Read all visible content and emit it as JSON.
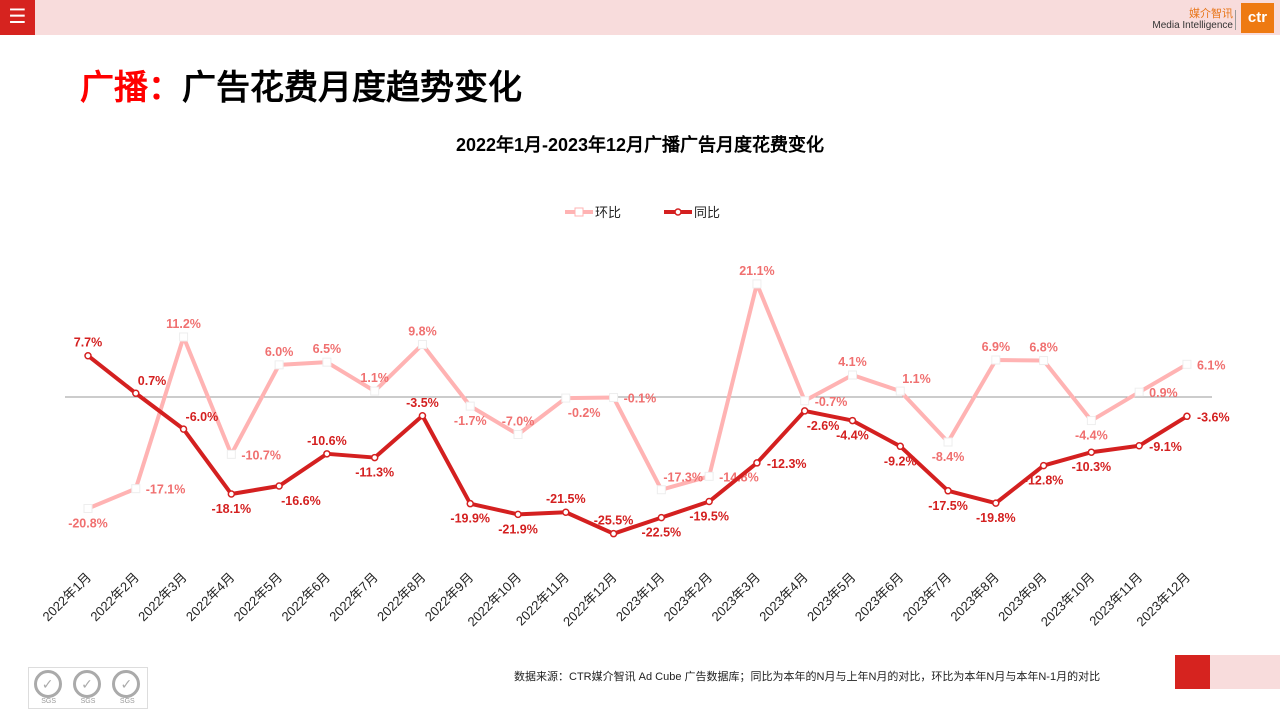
{
  "header": {
    "menu_icon": "hamburger-icon",
    "brand_cn": "媒介智讯",
    "brand_en": "Media Intelligence",
    "logo": "ctr"
  },
  "page_title": {
    "prefix": "广播：",
    "main": "广告花费月度趋势变化"
  },
  "colors": {
    "huanbi": "#ffb3b3",
    "huanbi_label": "#f07070",
    "tongbi": "#d42020",
    "accent": "#d6231f"
  },
  "chart_data": {
    "type": "line",
    "title": "2022年1月-2023年12月广播广告月度花费变化",
    "legend_position": "top",
    "grid": false,
    "categories": [
      "2022年1月",
      "2022年2月",
      "2022年3月",
      "2022年4月",
      "2022年5月",
      "2022年6月",
      "2022年7月",
      "2022年8月",
      "2022年9月",
      "2022年10月",
      "2022年11月",
      "2022年12月",
      "2023年1月",
      "2023年2月",
      "2023年3月",
      "2023年4月",
      "2023年5月",
      "2023年6月",
      "2023年7月",
      "2023年8月",
      "2023年9月",
      "2023年10月",
      "2023年11月",
      "2023年12月"
    ],
    "ylim": [
      -27,
      23
    ],
    "series": [
      {
        "name": "环比",
        "values": [
          -20.8,
          -17.1,
          11.2,
          -10.7,
          6.0,
          6.5,
          1.1,
          9.8,
          -1.7,
          -7.0,
          -0.2,
          -0.1,
          -17.3,
          -14.8,
          21.1,
          -0.7,
          4.1,
          1.1,
          -8.4,
          6.9,
          6.8,
          -4.4,
          0.9,
          6.1
        ]
      },
      {
        "name": "同比",
        "values": [
          7.7,
          0.7,
          -6.0,
          -18.1,
          -16.6,
          -10.6,
          -11.3,
          -3.5,
          -19.9,
          -21.9,
          -21.5,
          -25.5,
          -22.5,
          -19.5,
          -12.3,
          -2.6,
          -4.4,
          -9.2,
          -17.5,
          -19.8,
          -12.8,
          -10.3,
          -9.1,
          -3.6
        ]
      }
    ]
  },
  "footer": {
    "source": "数据来源：CTR媒介智讯 Ad Cube 广告数据库；同比为本年的N月与上年N月的对比，环比为本年N月与本年N-1月的对比",
    "cert_text": "SGS"
  }
}
